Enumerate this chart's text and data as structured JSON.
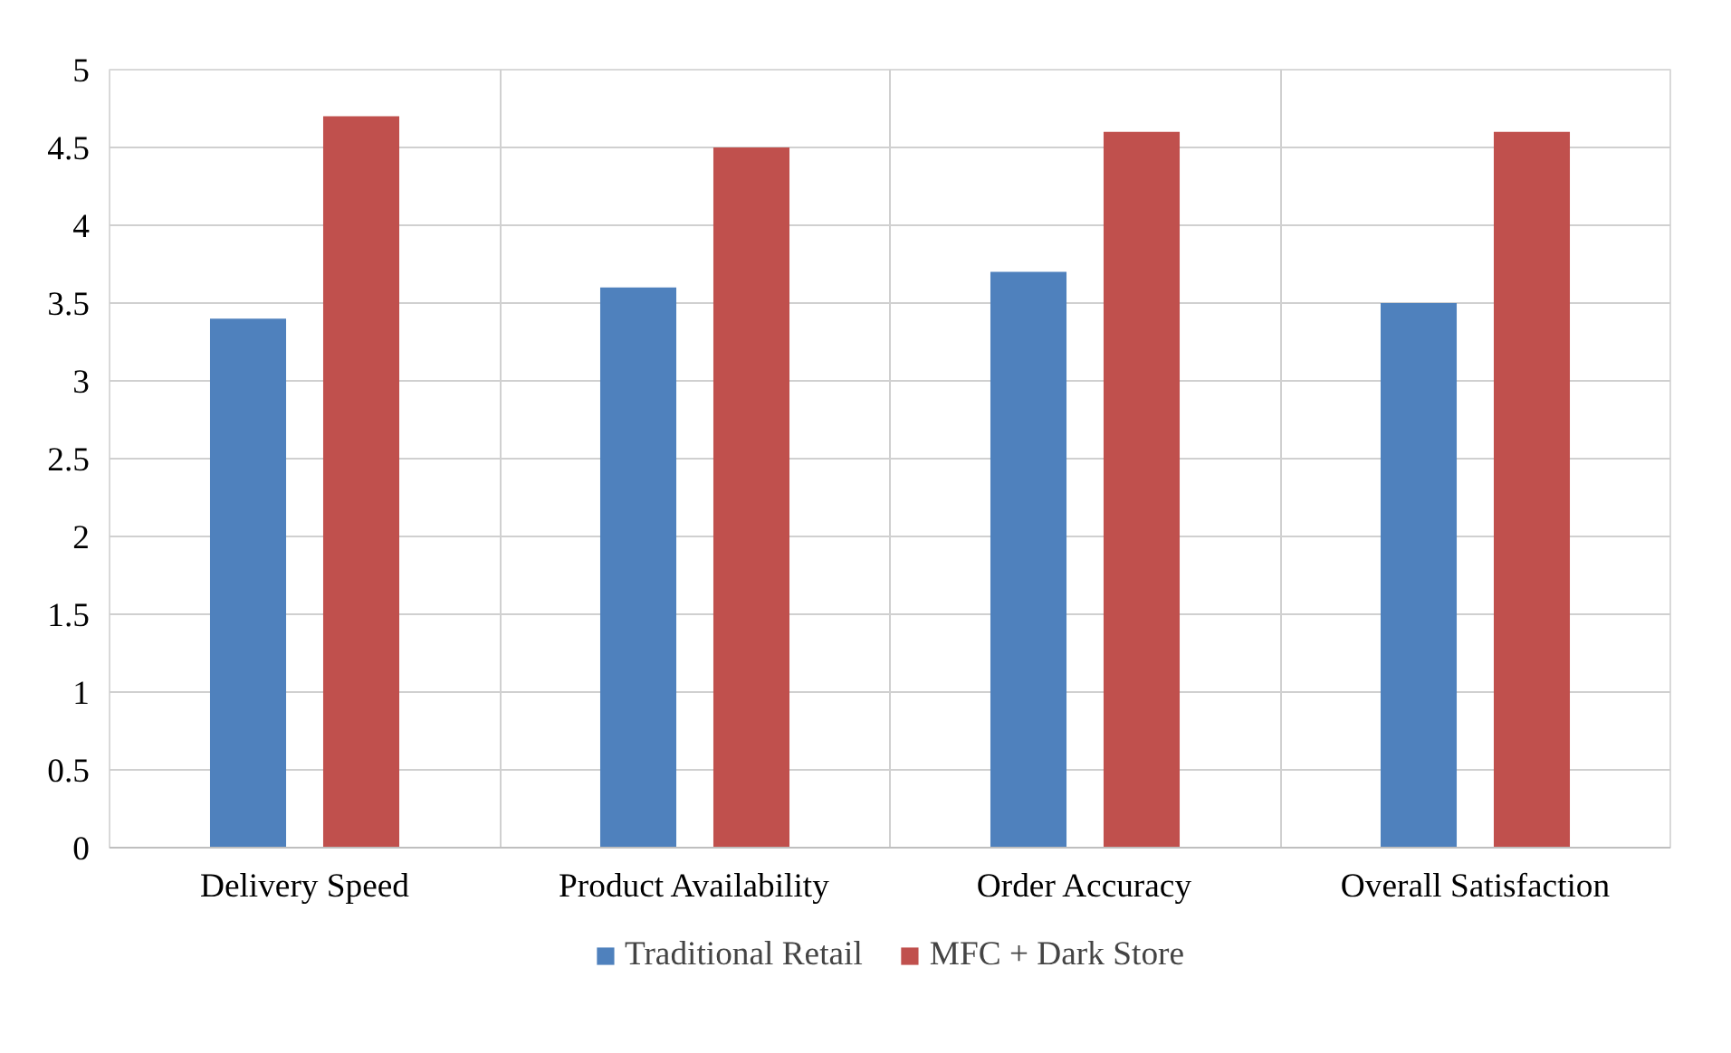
{
  "chart_data": {
    "type": "bar",
    "categories": [
      "Delivery Speed",
      "Product Availability",
      "Order Accuracy",
      "Overall Satisfaction"
    ],
    "series": [
      {
        "name": "Traditional Retail",
        "color": "#4f81bd",
        "values": [
          3.4,
          3.6,
          3.7,
          3.5
        ]
      },
      {
        "name": "MFC + Dark Store",
        "color": "#c0504d",
        "values": [
          4.7,
          4.5,
          4.6,
          4.6
        ]
      }
    ],
    "ylim": [
      0,
      5
    ],
    "yticks": [
      0,
      {
        "value": 0.5,
        "label": "0.5"
      },
      1,
      {
        "value": 1.5,
        "label": "1.5"
      },
      2,
      {
        "value": 2.5,
        "label": "2.5"
      },
      3,
      {
        "value": 3.5,
        "label": "3.5"
      },
      4,
      {
        "value": 4.5,
        "label": "4.5"
      },
      5
    ],
    "grid": true,
    "legend": "bottom"
  }
}
